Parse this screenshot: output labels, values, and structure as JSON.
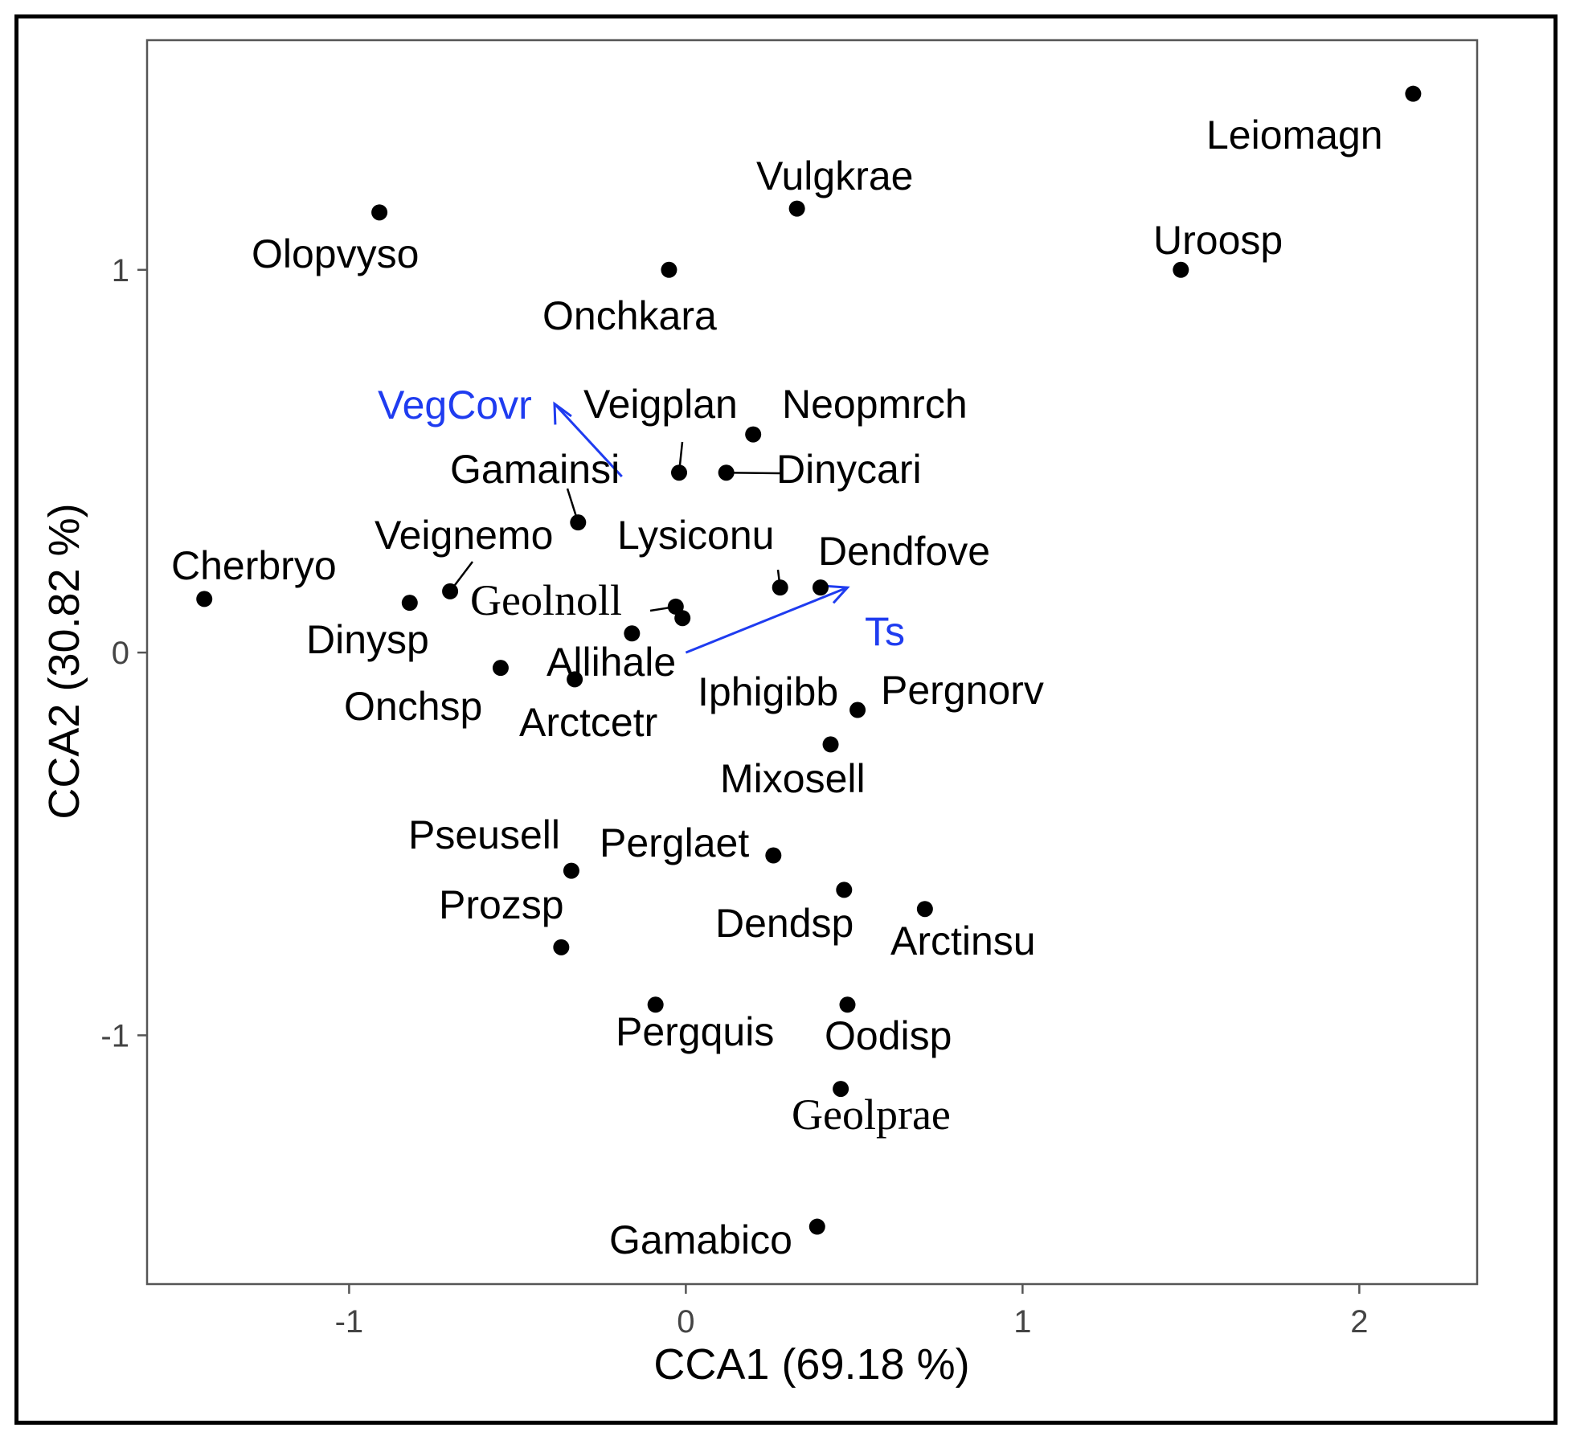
{
  "chart_data": {
    "type": "scatter",
    "xlabel": "CCA1 (69.18 %)",
    "ylabel": "CCA2 (30.82 %)",
    "xlim": [
      -1.6,
      2.35
    ],
    "ylim": [
      -1.65,
      1.6
    ],
    "x_ticks": [
      -1,
      0,
      1,
      2
    ],
    "y_ticks": [
      -1,
      0,
      1
    ],
    "x_tick_labels": [
      "-1",
      "0",
      "1",
      "2"
    ],
    "y_tick_labels": [
      "-1",
      "0",
      "1"
    ],
    "grid": false,
    "point_color": "#000000",
    "vector_color": "#1f3cf0",
    "vectors": [
      {
        "name": "VegCovr",
        "x": -0.39,
        "y": 0.65
      },
      {
        "name": "Ts",
        "x": 0.48,
        "y": 0.17
      }
    ],
    "points": [
      {
        "label": "Leiomagn",
        "x": 2.16,
        "y": 1.46
      },
      {
        "label": "Vulgkrae",
        "x": 0.33,
        "y": 1.16
      },
      {
        "label": "Olopvyso",
        "x": -0.91,
        "y": 1.15
      },
      {
        "label": "Uroosp",
        "x": 1.47,
        "y": 1.0
      },
      {
        "label": "Onchkara",
        "x": -0.05,
        "y": 1.0
      },
      {
        "label": "Neopmrch",
        "x": 0.2,
        "y": 0.57
      },
      {
        "label": "Veigplan",
        "x": -0.02,
        "y": 0.47
      },
      {
        "label": "Dinycari",
        "x": 0.12,
        "y": 0.47
      },
      {
        "label": "Gamainsi",
        "x": -0.32,
        "y": 0.34
      },
      {
        "label": "Lysiconu",
        "x": 0.28,
        "y": 0.17
      },
      {
        "label": "Dendfove",
        "x": 0.4,
        "y": 0.17
      },
      {
        "label": "Veignemo",
        "x": -0.7,
        "y": 0.16
      },
      {
        "label": "Cherbryo",
        "x": -1.43,
        "y": 0.14
      },
      {
        "label": "Dinysp",
        "x": -0.82,
        "y": 0.13
      },
      {
        "label": "Geolnoll",
        "x": -0.03,
        "y": 0.12
      },
      {
        "label": "Geolnoll-2",
        "x": -0.01,
        "y": 0.09
      },
      {
        "label": "Allihale",
        "x": -0.16,
        "y": 0.05
      },
      {
        "label": "Onchsp",
        "x": -0.55,
        "y": -0.04
      },
      {
        "label": "Arctcetr",
        "x": -0.33,
        "y": -0.07
      },
      {
        "label": "Pergnorv",
        "x": 0.51,
        "y": -0.15
      },
      {
        "label": "Mixosell",
        "x": 0.43,
        "y": -0.24
      },
      {
        "label": "Perglaet",
        "x": 0.26,
        "y": -0.53
      },
      {
        "label": "Pseusell",
        "x": -0.34,
        "y": -0.57
      },
      {
        "label": "Dendsp",
        "x": 0.47,
        "y": -0.62
      },
      {
        "label": "Arctinsu",
        "x": 0.71,
        "y": -0.67
      },
      {
        "label": "Prozsp",
        "x": -0.37,
        "y": -0.77
      },
      {
        "label": "Pergquis",
        "x": -0.09,
        "y": -0.92
      },
      {
        "label": "Oodisp",
        "x": 0.48,
        "y": -0.92
      },
      {
        "label": "Geolprae",
        "x": 0.46,
        "y": -1.14
      },
      {
        "label": "Gamabico",
        "x": 0.39,
        "y": -1.5
      }
    ]
  }
}
